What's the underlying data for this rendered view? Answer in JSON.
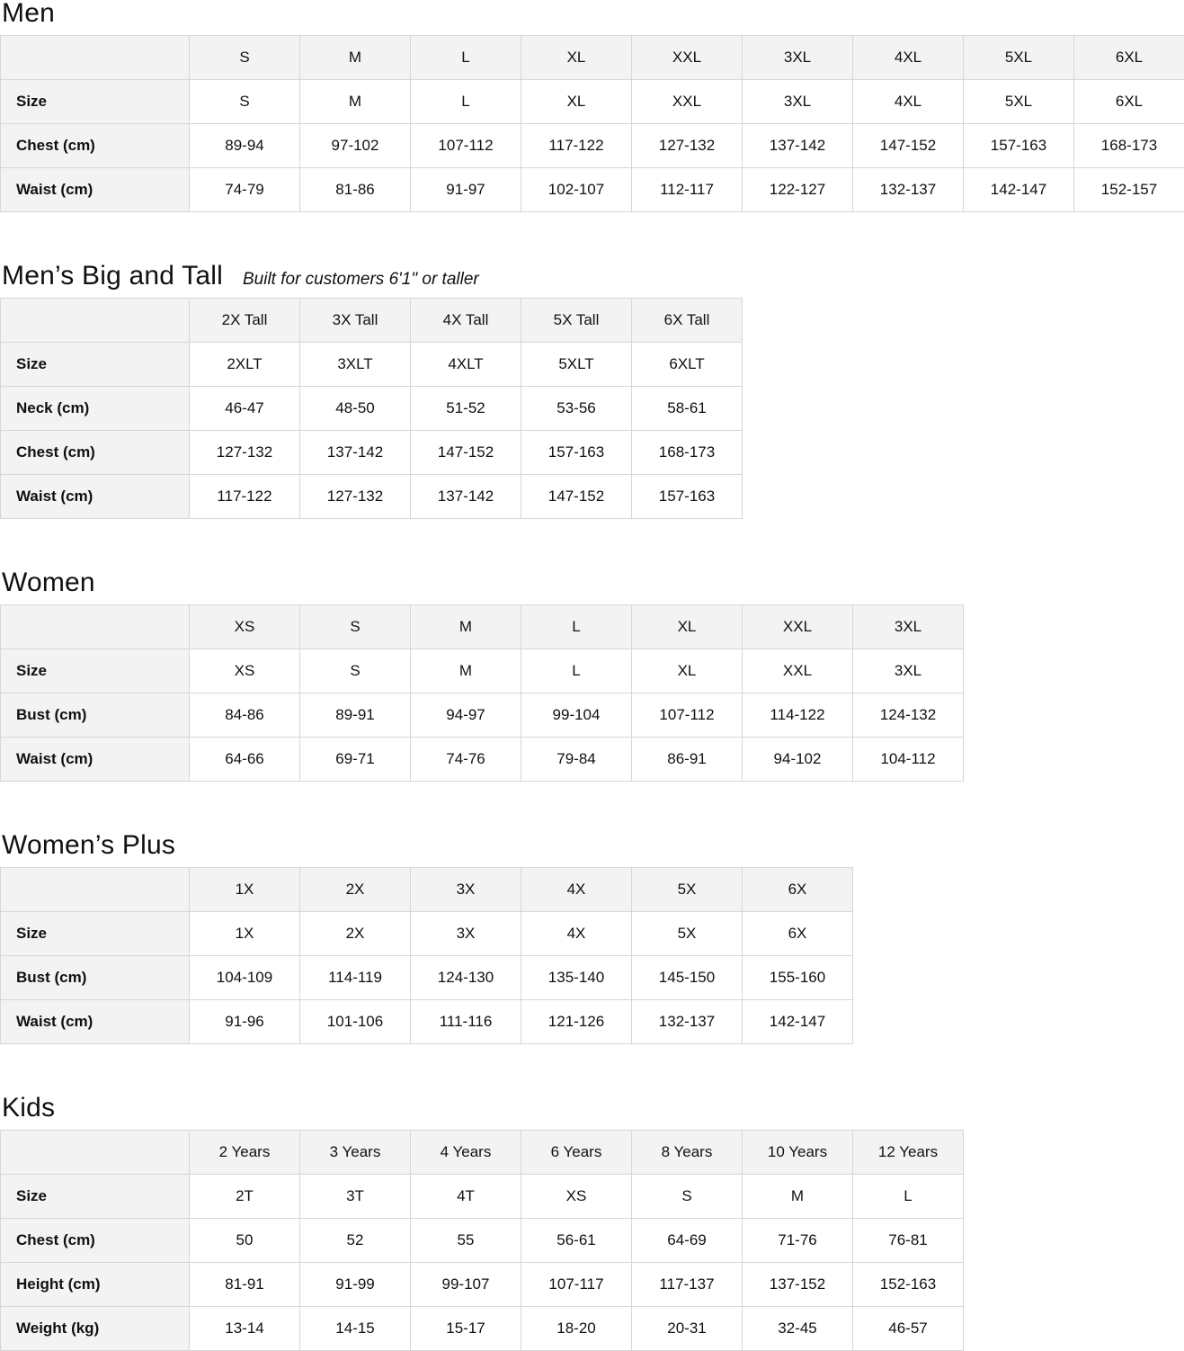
{
  "colors": {
    "text": "#0f1111",
    "header_bg": "#f3f3f3",
    "border": "#d6d6d6",
    "page_bg": "#ffffff"
  },
  "layout_units": {
    "label_col_width": 210,
    "data_col_width": 123
  },
  "sections": [
    {
      "id": "men",
      "title": "Men",
      "subtitle": "",
      "columns": [
        "S",
        "M",
        "L",
        "XL",
        "XXL",
        "3XL",
        "4XL",
        "5XL",
        "6XL"
      ],
      "rows": [
        {
          "label": "Size",
          "values": [
            "S",
            "M",
            "L",
            "XL",
            "XXL",
            "3XL",
            "4XL",
            "5XL",
            "6XL"
          ]
        },
        {
          "label": "Chest (cm)",
          "values": [
            "89-94",
            "97-102",
            "107-112",
            "117-122",
            "127-132",
            "137-142",
            "147-152",
            "157-163",
            "168-173"
          ]
        },
        {
          "label": "Waist (cm)",
          "values": [
            "74-79",
            "81-86",
            "91-97",
            "102-107",
            "112-117",
            "122-127",
            "132-137",
            "142-147",
            "152-157"
          ]
        }
      ]
    },
    {
      "id": "mens-big-and-tall",
      "title": "Men’s Big and Tall",
      "subtitle": "Built for customers 6'1\" or taller",
      "columns": [
        "2X Tall",
        "3X Tall",
        "4X Tall",
        "5X Tall",
        "6X Tall"
      ],
      "rows": [
        {
          "label": "Size",
          "values": [
            "2XLT",
            "3XLT",
            "4XLT",
            "5XLT",
            "6XLT"
          ]
        },
        {
          "label": "Neck (cm)",
          "values": [
            "46-47",
            "48-50",
            "51-52",
            "53-56",
            "58-61"
          ]
        },
        {
          "label": "Chest (cm)",
          "values": [
            "127-132",
            "137-142",
            "147-152",
            "157-163",
            "168-173"
          ]
        },
        {
          "label": "Waist (cm)",
          "values": [
            "117-122",
            "127-132",
            "137-142",
            "147-152",
            "157-163"
          ]
        }
      ]
    },
    {
      "id": "women",
      "title": "Women",
      "subtitle": "",
      "columns": [
        "XS",
        "S",
        "M",
        "L",
        "XL",
        "XXL",
        "3XL"
      ],
      "rows": [
        {
          "label": "Size",
          "values": [
            "XS",
            "S",
            "M",
            "L",
            "XL",
            "XXL",
            "3XL"
          ]
        },
        {
          "label": "Bust (cm)",
          "values": [
            "84-86",
            "89-91",
            "94-97",
            "99-104",
            "107-112",
            "114-122",
            "124-132"
          ]
        },
        {
          "label": "Waist (cm)",
          "values": [
            "64-66",
            "69-71",
            "74-76",
            "79-84",
            "86-91",
            "94-102",
            "104-112"
          ]
        }
      ]
    },
    {
      "id": "womens-plus",
      "title": "Women’s Plus",
      "subtitle": "",
      "columns": [
        "1X",
        "2X",
        "3X",
        "4X",
        "5X",
        "6X"
      ],
      "rows": [
        {
          "label": "Size",
          "values": [
            "1X",
            "2X",
            "3X",
            "4X",
            "5X",
            "6X"
          ]
        },
        {
          "label": "Bust (cm)",
          "values": [
            "104-109",
            "114-119",
            "124-130",
            "135-140",
            "145-150",
            "155-160"
          ]
        },
        {
          "label": "Waist (cm)",
          "values": [
            "91-96",
            "101-106",
            "111-116",
            "121-126",
            "132-137",
            "142-147"
          ]
        }
      ]
    },
    {
      "id": "kids",
      "title": "Kids",
      "subtitle": "",
      "columns": [
        "2 Years",
        "3 Years",
        "4 Years",
        "6 Years",
        "8 Years",
        "10 Years",
        "12 Years"
      ],
      "rows": [
        {
          "label": "Size",
          "values": [
            "2T",
            "3T",
            "4T",
            "XS",
            "S",
            "M",
            "L"
          ]
        },
        {
          "label": "Chest (cm)",
          "values": [
            "50",
            "52",
            "55",
            "56-61",
            "64-69",
            "71-76",
            "76-81"
          ]
        },
        {
          "label": "Height (cm)",
          "values": [
            "81-91",
            "91-99",
            "99-107",
            "107-117",
            "117-137",
            "137-152",
            "152-163"
          ]
        },
        {
          "label": "Weight (kg)",
          "values": [
            "13-14",
            "14-15",
            "15-17",
            "18-20",
            "20-31",
            "32-45",
            "46-57"
          ]
        }
      ]
    }
  ]
}
